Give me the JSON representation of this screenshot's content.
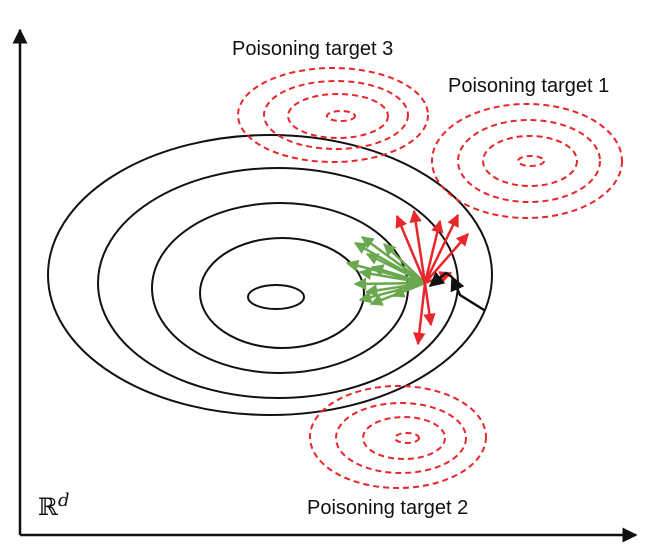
{
  "labels": {
    "target3": "Poisoning target 3",
    "target1": "Poisoning target 1",
    "target2": "Poisoning target 2",
    "space_symbol": "ℝ",
    "space_exponent": "d"
  },
  "colors": {
    "axis": "#111111",
    "contour": "#111111",
    "target_contour": "#e8262b",
    "poison_arrow": "#e8262b",
    "benign_arrow": "#6aa84f",
    "trajectory": "#111111"
  }
}
